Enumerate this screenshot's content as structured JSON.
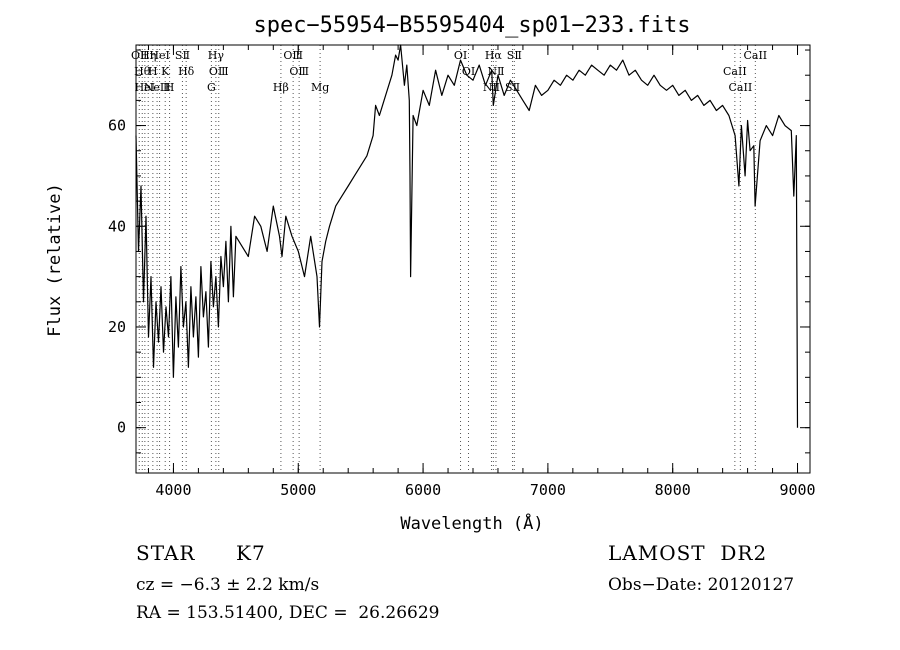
{
  "chart_data": {
    "type": "line",
    "title": "spec−55954−B5595404_sp01−233.fits",
    "xlabel": "Wavelength (Å)",
    "ylabel": "Flux (relative)",
    "xlim": [
      3700,
      9100
    ],
    "ylim": [
      -9,
      76
    ],
    "xticks": [
      "4000",
      "5000",
      "6000",
      "7000",
      "8000",
      "9000"
    ],
    "yticks": [
      "0",
      "20",
      "40",
      "60"
    ],
    "grid": false,
    "series": [
      {
        "x": [
          3700,
          3720,
          3740,
          3760,
          3780,
          3800,
          3820,
          3840,
          3860,
          3880,
          3900,
          3920,
          3940,
          3960,
          3980,
          4000,
          4020,
          4040,
          4060,
          4080,
          4100,
          4120,
          4140,
          4160,
          4180,
          4200,
          4220,
          4240,
          4260,
          4280,
          4300,
          4320,
          4340,
          4360,
          4380,
          4400,
          4420,
          4440,
          4460,
          4480,
          4500,
          4550,
          4600,
          4650,
          4700,
          4750,
          4800,
          4850,
          4870,
          4900,
          4950,
          5000,
          5050,
          5100,
          5150,
          5170,
          5190,
          5220,
          5250,
          5300,
          5350,
          5400,
          5450,
          5500,
          5550,
          5600,
          5620,
          5650,
          5700,
          5750,
          5780,
          5800,
          5820,
          5850,
          5870,
          5890,
          5895,
          5900,
          5920,
          5950,
          6000,
          6050,
          6100,
          6150,
          6200,
          6250,
          6300,
          6350,
          6400,
          6450,
          6500,
          6550,
          6563,
          6600,
          6650,
          6700,
          6750,
          6800,
          6850,
          6900,
          6950,
          7000,
          7050,
          7100,
          7150,
          7200,
          7250,
          7300,
          7350,
          7400,
          7450,
          7500,
          7550,
          7600,
          7650,
          7700,
          7750,
          7800,
          7850,
          7900,
          7950,
          8000,
          8050,
          8100,
          8150,
          8200,
          8250,
          8300,
          8350,
          8400,
          8450,
          8500,
          8530,
          8550,
          8580,
          8600,
          8620,
          8650,
          8660,
          8700,
          8750,
          8800,
          8850,
          8900,
          8950,
          8970,
          8990,
          9000
        ],
        "y": [
          58,
          35,
          48,
          25,
          42,
          18,
          30,
          12,
          25,
          17,
          28,
          15,
          24,
          18,
          30,
          10,
          26,
          16,
          32,
          20,
          25,
          12,
          28,
          18,
          26,
          14,
          32,
          22,
          27,
          16,
          33,
          24,
          30,
          20,
          34,
          28,
          37,
          25,
          40,
          26,
          38,
          36,
          34,
          42,
          40,
          35,
          44,
          38,
          34,
          42,
          38,
          35,
          30,
          38,
          30,
          20,
          33,
          37,
          40,
          44,
          46,
          48,
          50,
          52,
          54,
          58,
          64,
          62,
          66,
          70,
          74,
          73,
          76,
          68,
          72,
          65,
          50,
          30,
          62,
          60,
          67,
          64,
          71,
          66,
          70,
          68,
          73,
          70,
          69,
          72,
          68,
          71,
          64,
          70,
          66,
          69,
          67,
          65,
          63,
          68,
          66,
          67,
          69,
          68,
          70,
          69,
          71,
          70,
          72,
          71,
          70,
          72,
          71,
          73,
          70,
          71,
          69,
          68,
          70,
          68,
          67,
          68,
          66,
          67,
          65,
          66,
          64,
          65,
          63,
          64,
          62,
          58,
          48,
          60,
          50,
          61,
          55,
          56,
          44,
          57,
          60,
          58,
          62,
          60,
          59,
          46,
          58,
          0
        ]
      }
    ],
    "lines": [
      {
        "wl": 3726,
        "labels": [
          "OⅡ"
        ]
      },
      {
        "wl": 3750,
        "labels": [
          "Hθ"
        ]
      },
      {
        "wl": 3771,
        "labels": [
          "HeI"
        ]
      },
      {
        "wl": 3798,
        "labels": [
          "Hη"
        ]
      },
      {
        "wl": 3835,
        "labels": [
          "H"
        ]
      },
      {
        "wl": 3869,
        "labels": [
          "NeⅢ"
        ]
      },
      {
        "wl": 3889,
        "labels": [
          "HeI"
        ]
      },
      {
        "wl": 3934,
        "labels": [
          "K"
        ]
      },
      {
        "wl": 3969,
        "labels": [
          "H"
        ]
      },
      {
        "wl": 4072,
        "labels": [
          "SⅡ"
        ]
      },
      {
        "wl": 4102,
        "labels": [
          "Hδ"
        ]
      },
      {
        "wl": 4304,
        "labels": [
          "G"
        ]
      },
      {
        "wl": 4340,
        "labels": [
          "Hγ"
        ]
      },
      {
        "wl": 4363,
        "labels": [
          "OⅢ"
        ]
      },
      {
        "wl": 4861,
        "labels": [
          "Hβ"
        ]
      },
      {
        "wl": 4959,
        "labels": [
          "OⅢ"
        ]
      },
      {
        "wl": 5007,
        "labels": [
          "OⅢ"
        ]
      },
      {
        "wl": 5175,
        "labels": [
          "Mg"
        ]
      },
      {
        "wl": 6300,
        "labels": [
          "OⅠ"
        ]
      },
      {
        "wl": 6364,
        "labels": [
          "OⅠ"
        ]
      },
      {
        "wl": 6548,
        "labels": [
          "NⅡ"
        ]
      },
      {
        "wl": 6563,
        "labels": [
          "Hα"
        ]
      },
      {
        "wl": 6584,
        "labels": [
          "NⅡ"
        ]
      },
      {
        "wl": 6717,
        "labels": [
          "SⅡ"
        ]
      },
      {
        "wl": 6731,
        "labels": [
          "SⅡ"
        ]
      },
      {
        "wl": 8498,
        "labels": [
          "CaII"
        ]
      },
      {
        "wl": 8542,
        "labels": [
          "CaII"
        ]
      },
      {
        "wl": 8662,
        "labels": [
          "CaII"
        ]
      }
    ]
  },
  "info": {
    "class": "STAR",
    "subclass": "K7",
    "release": "LAMOST  DR2",
    "cz": "cz = −6.3 ± 2.2 km/s",
    "obs_date": "Obs−Date: 20120127",
    "radec": "RA = 153.51400, DEC =  26.26629"
  }
}
